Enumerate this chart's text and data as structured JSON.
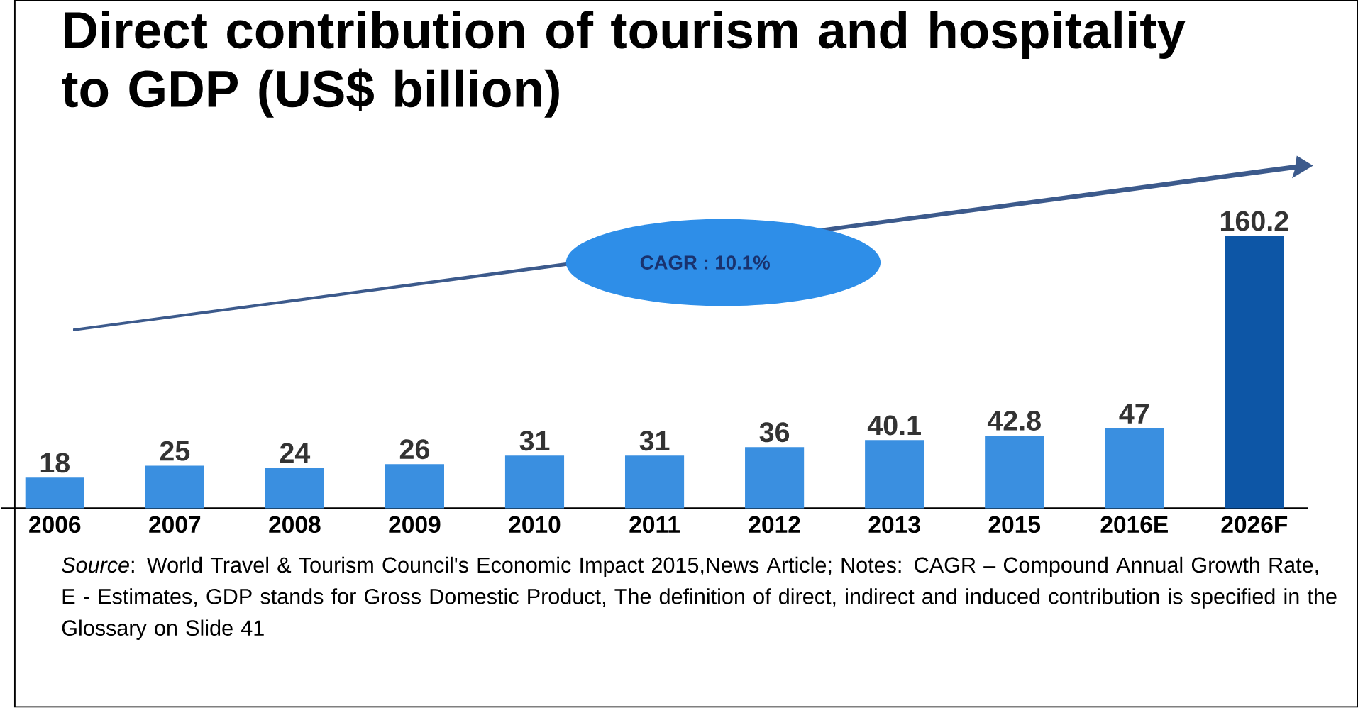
{
  "chart_data": {
    "type": "bar",
    "title": "Direct contribution of tourism and hospitality to GDP (US$ billion)",
    "categories": [
      "2006",
      "2007",
      "2008",
      "2009",
      "2010",
      "2011",
      "2012",
      "2013",
      "2015",
      "2016E",
      "2026F"
    ],
    "values": [
      18,
      25,
      24,
      26,
      31,
      31,
      36,
      40.1,
      42.8,
      47,
      160.2
    ],
    "colors": [
      "#3a8fe0",
      "#3a8fe0",
      "#3a8fe0",
      "#3a8fe0",
      "#3a8fe0",
      "#3a8fe0",
      "#3a8fe0",
      "#3a8fe0",
      "#3a8fe0",
      "#3a8fe0",
      "#0d56a6"
    ],
    "data_labels": true,
    "annotations": [
      "CAGR : 10.1%",
      "*Source*: World Travel & Tourism Council's Economic Impact 2015,News Article; Notes: CAGR – Compound Annual Growth Rate, E - Estimates, GDP stands for Gross Domestic Product, The definition of direct, indirect and induced contribution is specified in the Glossary on Slide 41"
    ]
  }
}
